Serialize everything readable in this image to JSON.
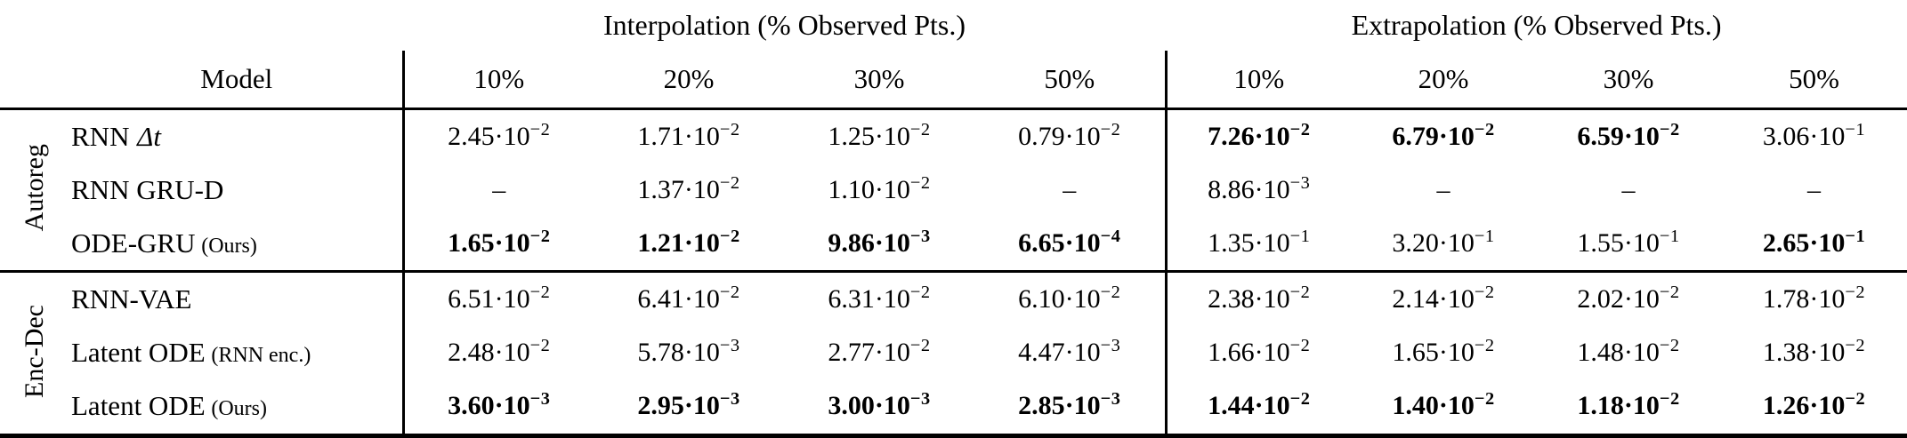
{
  "colors": {
    "text": "#000000",
    "background": "#ffffff",
    "rule": "#000000"
  },
  "table": {
    "header": {
      "model_label": "Model",
      "groups": [
        {
          "title": "Interpolation (% Observed Pts.)",
          "cols": [
            "10%",
            "20%",
            "30%",
            "50%"
          ]
        },
        {
          "title": "Extrapolation (% Observed Pts.)",
          "cols": [
            "10%",
            "20%",
            "30%",
            "50%"
          ]
        }
      ]
    },
    "body_groups": [
      {
        "label": "Autoreg",
        "rows": [
          {
            "model": {
              "main": "RNN",
              "math": "Δt",
              "note": ""
            },
            "cells": [
              {
                "b": "2.45·10",
                "e": "−2",
                "bold": false
              },
              {
                "b": "1.71·10",
                "e": "−2",
                "bold": false
              },
              {
                "b": "1.25·10",
                "e": "−2",
                "bold": false
              },
              {
                "b": "0.79·10",
                "e": "−2",
                "bold": false
              },
              {
                "b": "7.26·10",
                "e": "−2",
                "bold": true
              },
              {
                "b": "6.79·10",
                "e": "−2",
                "bold": true
              },
              {
                "b": "6.59·10",
                "e": "−2",
                "bold": true
              },
              {
                "b": "3.06·10",
                "e": "−1",
                "bold": false
              }
            ]
          },
          {
            "model": {
              "main": "RNN GRU-D",
              "math": "",
              "note": ""
            },
            "cells": [
              {
                "b": "–",
                "e": "",
                "bold": false
              },
              {
                "b": "1.37·10",
                "e": "−2",
                "bold": false
              },
              {
                "b": "1.10·10",
                "e": "−2",
                "bold": false
              },
              {
                "b": "–",
                "e": "",
                "bold": false
              },
              {
                "b": "8.86·10",
                "e": "−3",
                "bold": false
              },
              {
                "b": "–",
                "e": "",
                "bold": false
              },
              {
                "b": "–",
                "e": "",
                "bold": false
              },
              {
                "b": "–",
                "e": "",
                "bold": false
              }
            ]
          },
          {
            "model": {
              "main": "ODE-GRU",
              "math": "",
              "note": "(Ours)"
            },
            "cells": [
              {
                "b": "1.65·10",
                "e": "−2",
                "bold": true
              },
              {
                "b": "1.21·10",
                "e": "−2",
                "bold": true
              },
              {
                "b": "9.86·10",
                "e": "−3",
                "bold": true
              },
              {
                "b": "6.65·10",
                "e": "−4",
                "bold": true
              },
              {
                "b": "1.35·10",
                "e": "−1",
                "bold": false
              },
              {
                "b": "3.20·10",
                "e": "−1",
                "bold": false
              },
              {
                "b": "1.55·10",
                "e": "−1",
                "bold": false
              },
              {
                "b": "2.65·10",
                "e": "−1",
                "bold": true
              }
            ]
          }
        ]
      },
      {
        "label": "Enc-Dec",
        "rows": [
          {
            "model": {
              "main": "RNN-VAE",
              "math": "",
              "note": ""
            },
            "cells": [
              {
                "b": "6.51·10",
                "e": "−2",
                "bold": false
              },
              {
                "b": "6.41·10",
                "e": "−2",
                "bold": false
              },
              {
                "b": "6.31·10",
                "e": "−2",
                "bold": false
              },
              {
                "b": "6.10·10",
                "e": "−2",
                "bold": false
              },
              {
                "b": "2.38·10",
                "e": "−2",
                "bold": false
              },
              {
                "b": "2.14·10",
                "e": "−2",
                "bold": false
              },
              {
                "b": "2.02·10",
                "e": "−2",
                "bold": false
              },
              {
                "b": "1.78·10",
                "e": "−2",
                "bold": false
              }
            ]
          },
          {
            "model": {
              "main": "Latent ODE",
              "math": "",
              "note": "(RNN enc.)"
            },
            "cells": [
              {
                "b": "2.48·10",
                "e": "−2",
                "bold": false
              },
              {
                "b": "5.78·10",
                "e": "−3",
                "bold": false
              },
              {
                "b": "2.77·10",
                "e": "−2",
                "bold": false
              },
              {
                "b": "4.47·10",
                "e": "−3",
                "bold": false
              },
              {
                "b": "1.66·10",
                "e": "−2",
                "bold": false
              },
              {
                "b": "1.65·10",
                "e": "−2",
                "bold": false
              },
              {
                "b": "1.48·10",
                "e": "−2",
                "bold": false
              },
              {
                "b": "1.38·10",
                "e": "−2",
                "bold": false
              }
            ]
          },
          {
            "model": {
              "main": "Latent ODE",
              "math": "",
              "note": "(Ours)"
            },
            "cells": [
              {
                "b": "3.60·10",
                "e": "−3",
                "bold": true
              },
              {
                "b": "2.95·10",
                "e": "−3",
                "bold": true
              },
              {
                "b": "3.00·10",
                "e": "−3",
                "bold": true
              },
              {
                "b": "2.85·10",
                "e": "−3",
                "bold": true
              },
              {
                "b": "1.44·10",
                "e": "−2",
                "bold": true
              },
              {
                "b": "1.40·10",
                "e": "−2",
                "bold": true
              },
              {
                "b": "1.18·10",
                "e": "−2",
                "bold": true
              },
              {
                "b": "1.26·10",
                "e": "−2",
                "bold": true
              }
            ]
          }
        ]
      }
    ]
  }
}
